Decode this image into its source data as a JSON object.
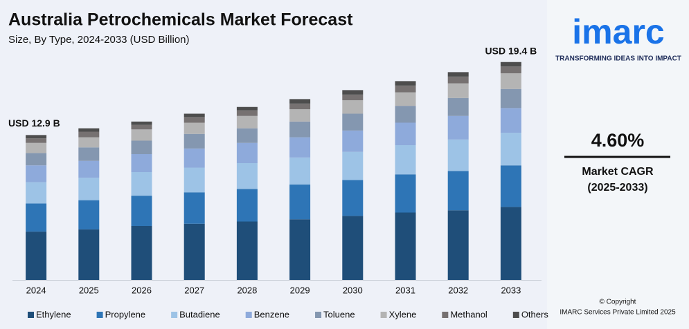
{
  "chart_data": {
    "type": "stacked-bar",
    "title": "Australia Petrochemicals Market Forecast",
    "subtitle": "Size, By Type, 2024-2033 (USD Billion)",
    "categories": [
      "2024",
      "2025",
      "2026",
      "2027",
      "2028",
      "2029",
      "2030",
      "2031",
      "2032",
      "2033"
    ],
    "series": [
      {
        "name": "Ethylene",
        "color": "#1f4e79",
        "values": [
          4.3,
          4.5,
          4.8,
          5.0,
          5.2,
          5.4,
          5.7,
          6.0,
          6.2,
          6.5
        ]
      },
      {
        "name": "Propylene",
        "color": "#2e75b6",
        "values": [
          2.5,
          2.6,
          2.7,
          2.8,
          2.9,
          3.1,
          3.2,
          3.4,
          3.5,
          3.7
        ]
      },
      {
        "name": "Butadiene",
        "color": "#9dc3e6",
        "values": [
          1.9,
          2.0,
          2.1,
          2.2,
          2.3,
          2.4,
          2.5,
          2.6,
          2.8,
          2.9
        ]
      },
      {
        "name": "Benzene",
        "color": "#8eaadb",
        "values": [
          1.5,
          1.5,
          1.6,
          1.7,
          1.8,
          1.8,
          1.9,
          2.0,
          2.1,
          2.2
        ]
      },
      {
        "name": "Toluene",
        "color": "#8497b0",
        "values": [
          1.1,
          1.2,
          1.2,
          1.3,
          1.3,
          1.4,
          1.5,
          1.5,
          1.6,
          1.7
        ]
      },
      {
        "name": "Xylene",
        "color": "#b4b4b4",
        "values": [
          0.9,
          0.9,
          1.0,
          1.0,
          1.1,
          1.1,
          1.2,
          1.2,
          1.3,
          1.4
        ]
      },
      {
        "name": "Methanol",
        "color": "#767171",
        "values": [
          0.4,
          0.5,
          0.4,
          0.5,
          0.5,
          0.5,
          0.5,
          0.6,
          0.6,
          0.6
        ]
      },
      {
        "name": "Others",
        "color": "#4d4d4d",
        "values": [
          0.3,
          0.3,
          0.3,
          0.3,
          0.3,
          0.4,
          0.4,
          0.4,
          0.4,
          0.4
        ]
      }
    ],
    "ylim": [
      0,
      20
    ],
    "annotations": [
      "USD 12.9 B",
      "USD 19.4 B"
    ],
    "legend": "bottom"
  },
  "side_panel": {
    "logo": "imarc",
    "tagline": "TRANSFORMING IDEAS INTO IMPACT",
    "cagr": "4.60%",
    "cagr_label": "Market CAGR",
    "cagr_period": "(2025-2033)",
    "copyright": "© Copyright",
    "company": "IMARC Services Private Limited 2025"
  }
}
